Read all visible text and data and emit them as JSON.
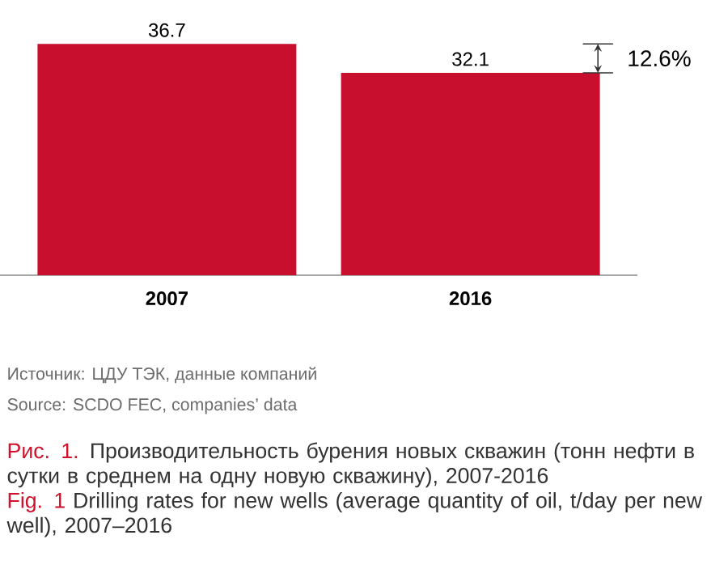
{
  "chart_data": {
    "type": "bar",
    "categories": [
      "2007",
      "2016"
    ],
    "values": [
      36.7,
      32.1
    ],
    "color": "#c8102e",
    "data_labels": true,
    "tick_labels": "x",
    "annotations": [
      "12.6%",
      "Источник: ЦДУ ТЭК, данные компаний",
      "Source: SCDO FEC, companies’ data",
      "Рис. 1.",
      "Производительность бурения новых скважин (тонн нефти в сутки в среднем на одну новую скважину), 2007-2016",
      "Fig. 1",
      "Drilling rates for new wells (average quantity of oil, t/day per new well), 2007–2016"
    ]
  }
}
